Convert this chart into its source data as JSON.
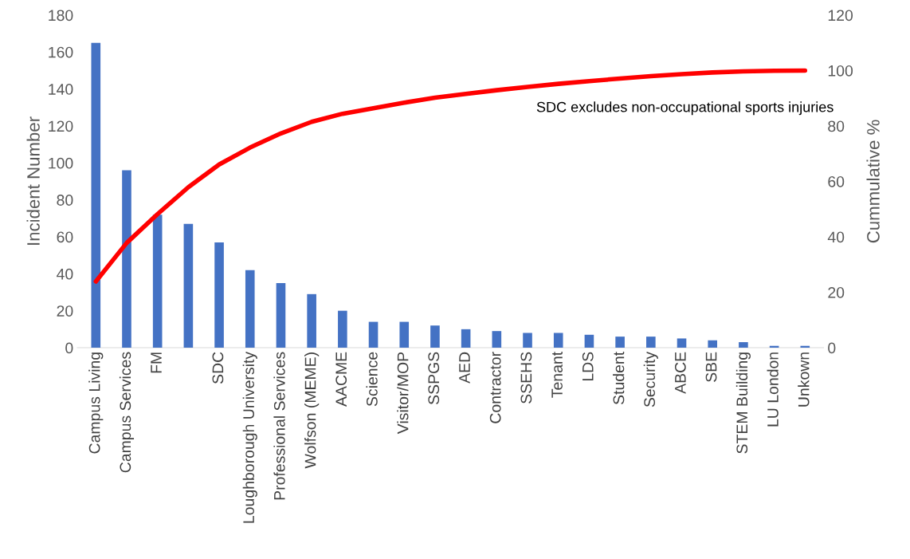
{
  "chart_data": {
    "type": "bar",
    "ylabel": "Incident Number",
    "y2label": "Cummulative %",
    "categories": [
      "Campus Living",
      "Campus Services",
      "FM",
      null,
      "SDC",
      "Loughborough University",
      "Professional Services",
      "Wolfson (MEME)",
      "AACME",
      "Science",
      "Visitor/MOP",
      "SSPGS",
      "AED",
      "Contractor",
      "SSEHS",
      "Tenant",
      "LDS",
      "Student",
      "Security",
      "ABCE",
      "SBE",
      "STEM Building",
      "LU London",
      "Unkown"
    ],
    "series": [
      {
        "color": "#4472c4",
        "values": [
          165,
          96,
          72,
          67,
          57,
          42,
          35,
          29,
          20,
          14,
          14,
          12,
          10,
          9,
          8,
          8,
          7,
          6,
          6,
          5,
          4,
          3,
          1,
          1
        ]
      },
      {
        "type": "line",
        "axis": "y2",
        "color": "#ff0000",
        "values": [
          23.9,
          37.8,
          48.2,
          57.9,
          66.1,
          72.2,
          77.3,
          81.5,
          84.4,
          86.4,
          88.4,
          90.2,
          91.6,
          92.9,
          94.1,
          95.2,
          96.2,
          97.1,
          98.0,
          98.7,
          99.3,
          99.7,
          99.9,
          100
        ]
      }
    ],
    "ylim": [
      0,
      180
    ],
    "yticks": [
      0,
      20,
      40,
      60,
      80,
      100,
      120,
      140,
      160,
      180
    ],
    "y2lim": [
      0,
      120
    ],
    "y2ticks": [
      0,
      20,
      40,
      60,
      80,
      100,
      120
    ],
    "annotations": [
      "SDC excludes non-occupational sports injuries"
    ],
    "grid": false,
    "legend": false
  }
}
